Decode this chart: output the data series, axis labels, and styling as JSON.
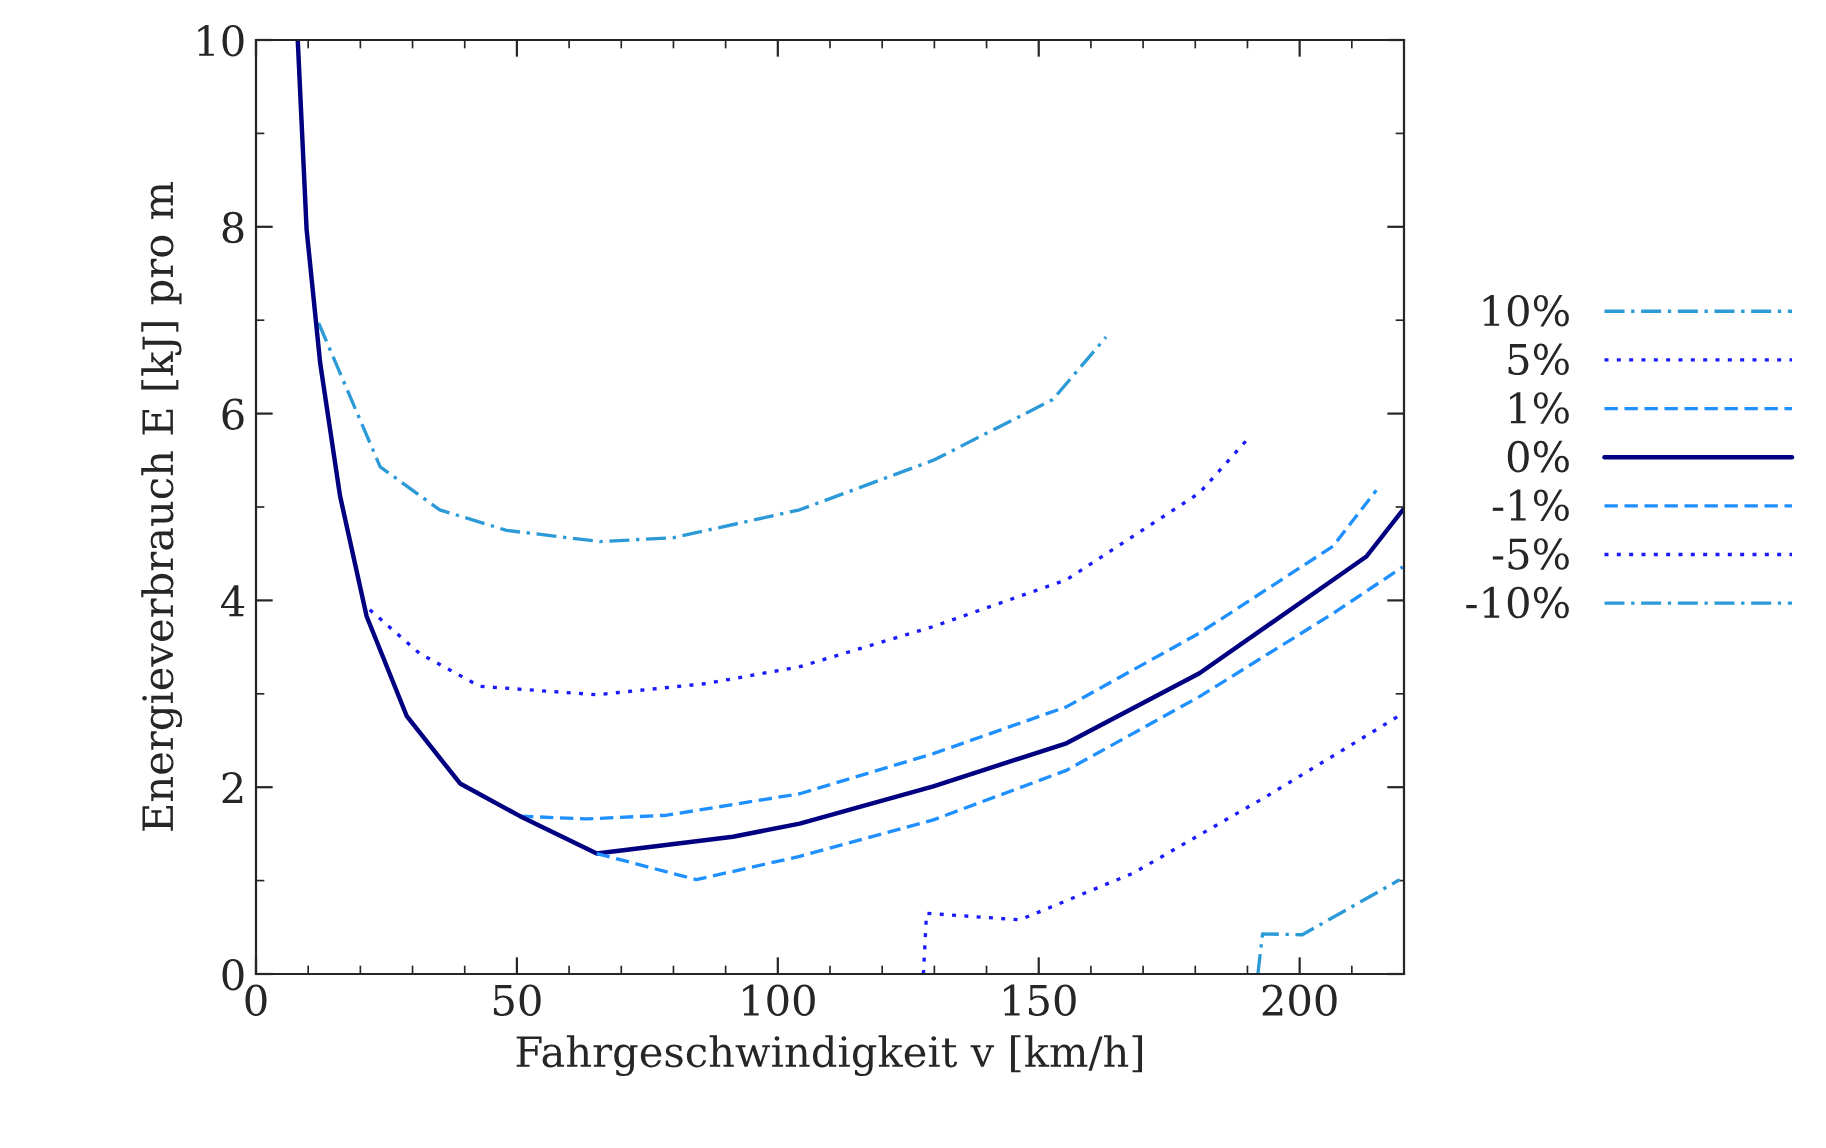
{
  "chart_data": {
    "type": "line",
    "xlabel": "Fahrgeschwindigkeit v [km/h]",
    "ylabel": "Energieverbrauch E [kJ] pro m",
    "xlim": [
      0,
      220
    ],
    "xticks": [
      0,
      50,
      100,
      150,
      200
    ],
    "ylim": [
      0,
      10
    ],
    "yticks": [
      0,
      2,
      4,
      6,
      8,
      10
    ],
    "grid": false,
    "legend": "right",
    "marker": "none",
    "series": [
      {
        "name": "10%",
        "color": "#2b9ad6",
        "line_style": "dashdot",
        "x": [
          12,
          23.8,
          35.2,
          48,
          65.9,
          79.9,
          104.2,
          129.8,
          152.7,
          162.9
        ],
        "values": [
          6.97,
          5.43,
          4.97,
          4.75,
          4.63,
          4.67,
          4.97,
          5.5,
          6.15,
          6.82
        ]
      },
      {
        "name": "5%",
        "color": "#1a1aff",
        "line_style": "dotted",
        "x": [
          21.8,
          31.4,
          42.9,
          65.3,
          86.3,
          104.2,
          129.8,
          155.3,
          180.8,
          190.4
        ],
        "values": [
          3.9,
          3.43,
          3.08,
          2.99,
          3.11,
          3.29,
          3.72,
          4.22,
          5.15,
          5.75
        ]
      },
      {
        "name": "1%",
        "color": "#1e90ff",
        "line_style": "dashed",
        "x": [
          50.6,
          63.3,
          78.7,
          104.2,
          129.8,
          155.3,
          180.8,
          206.4,
          214.7
        ],
        "values": [
          1.69,
          1.66,
          1.7,
          1.93,
          2.36,
          2.86,
          3.65,
          4.58,
          5.18
        ]
      },
      {
        "name": "0%",
        "color": "#000080",
        "line_style": "solid",
        "x": [
          8,
          9.7,
          12.3,
          16.1,
          21.2,
          28.9,
          39.1,
          50.6,
          65.3,
          91.4,
          104.2,
          129.8,
          155.3,
          180.8,
          200,
          212.8,
          219.8
        ],
        "values": [
          10,
          7.97,
          6.54,
          5.12,
          3.83,
          2.76,
          2.04,
          1.69,
          1.29,
          1.47,
          1.61,
          2.01,
          2.47,
          3.22,
          3.97,
          4.47,
          4.97
        ]
      },
      {
        "name": "-1%",
        "color": "#1e90ff",
        "line_style": "dashed",
        "x": [
          65.3,
          84.4,
          104.2,
          129.8,
          155.3,
          180.8,
          206.4,
          219.8
        ],
        "values": [
          1.29,
          1.01,
          1.26,
          1.65,
          2.18,
          2.97,
          3.86,
          4.36
        ]
      },
      {
        "name": "-5%",
        "color": "#1a1aff",
        "line_style": "dotted",
        "x": [
          127.9,
          128.5,
          146.4,
          168.1,
          193.6,
          219.8
        ],
        "values": [
          0,
          0.65,
          0.58,
          1.08,
          1.9,
          2.79
        ]
      },
      {
        "name": "-10%",
        "color": "#2b9ad6",
        "line_style": "dashdot",
        "x": [
          192,
          192.9,
          200.5,
          219.2
        ],
        "values": [
          0,
          0.43,
          0.42,
          1.01
        ]
      }
    ]
  }
}
